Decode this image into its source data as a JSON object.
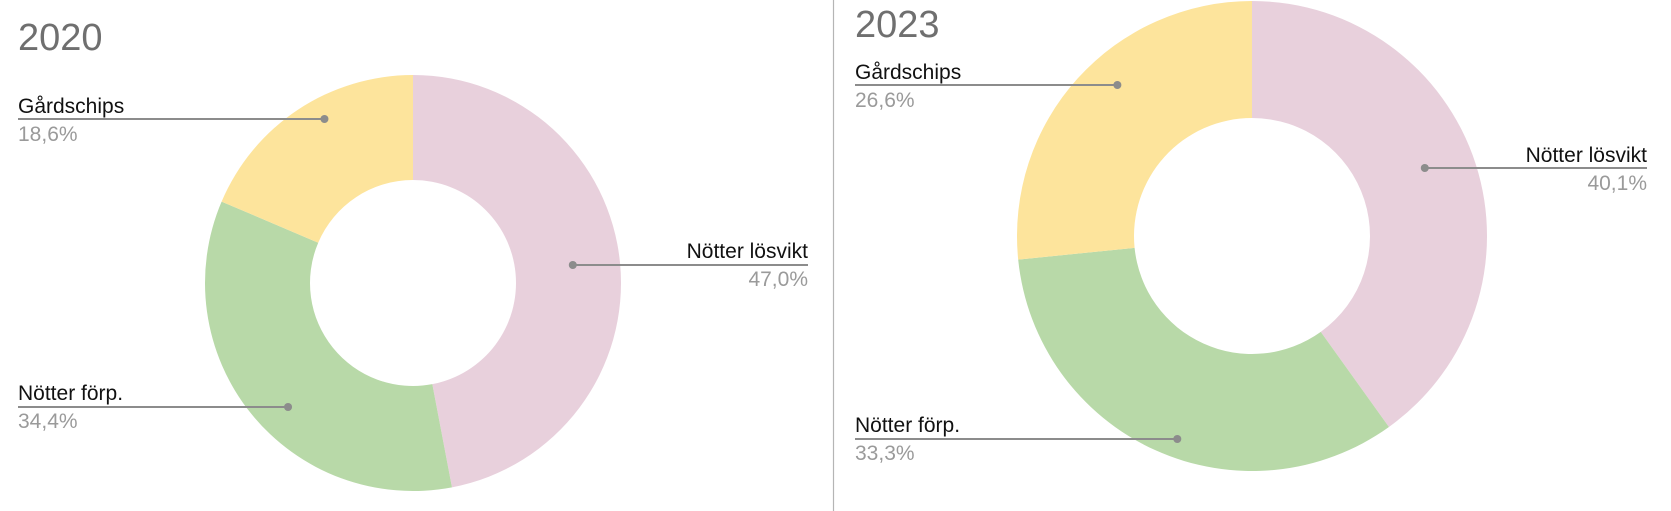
{
  "colors": {
    "Nötter lösvikt": "#e8d0dc",
    "Nötter förp.": "#b8d9a8",
    "Gårdschips": "#fde49c",
    "leader": "#8c8c8c",
    "label_text": "#111111",
    "value_text": "#9a9a9a",
    "title_text": "#6f6f6f",
    "divider": "#b5b5b5"
  },
  "chart_data": [
    {
      "type": "pie",
      "donut": true,
      "title": "2020",
      "slices": [
        {
          "label": "Nötter lösvikt",
          "value": 47.0,
          "value_label": "47,0%"
        },
        {
          "label": "Nötter förp.",
          "value": 34.4,
          "value_label": "34,4%"
        },
        {
          "label": "Gårdschips",
          "value": 18.6,
          "value_label": "18,6%"
        }
      ]
    },
    {
      "type": "pie",
      "donut": true,
      "title": "2023",
      "slices": [
        {
          "label": "Nötter lösvikt",
          "value": 40.1,
          "value_label": "40,1%"
        },
        {
          "label": "Nötter förp.",
          "value": 33.3,
          "value_label": "33,3%"
        },
        {
          "label": "Gårdschips",
          "value": 26.6,
          "value_label": "26,6%"
        }
      ]
    }
  ]
}
